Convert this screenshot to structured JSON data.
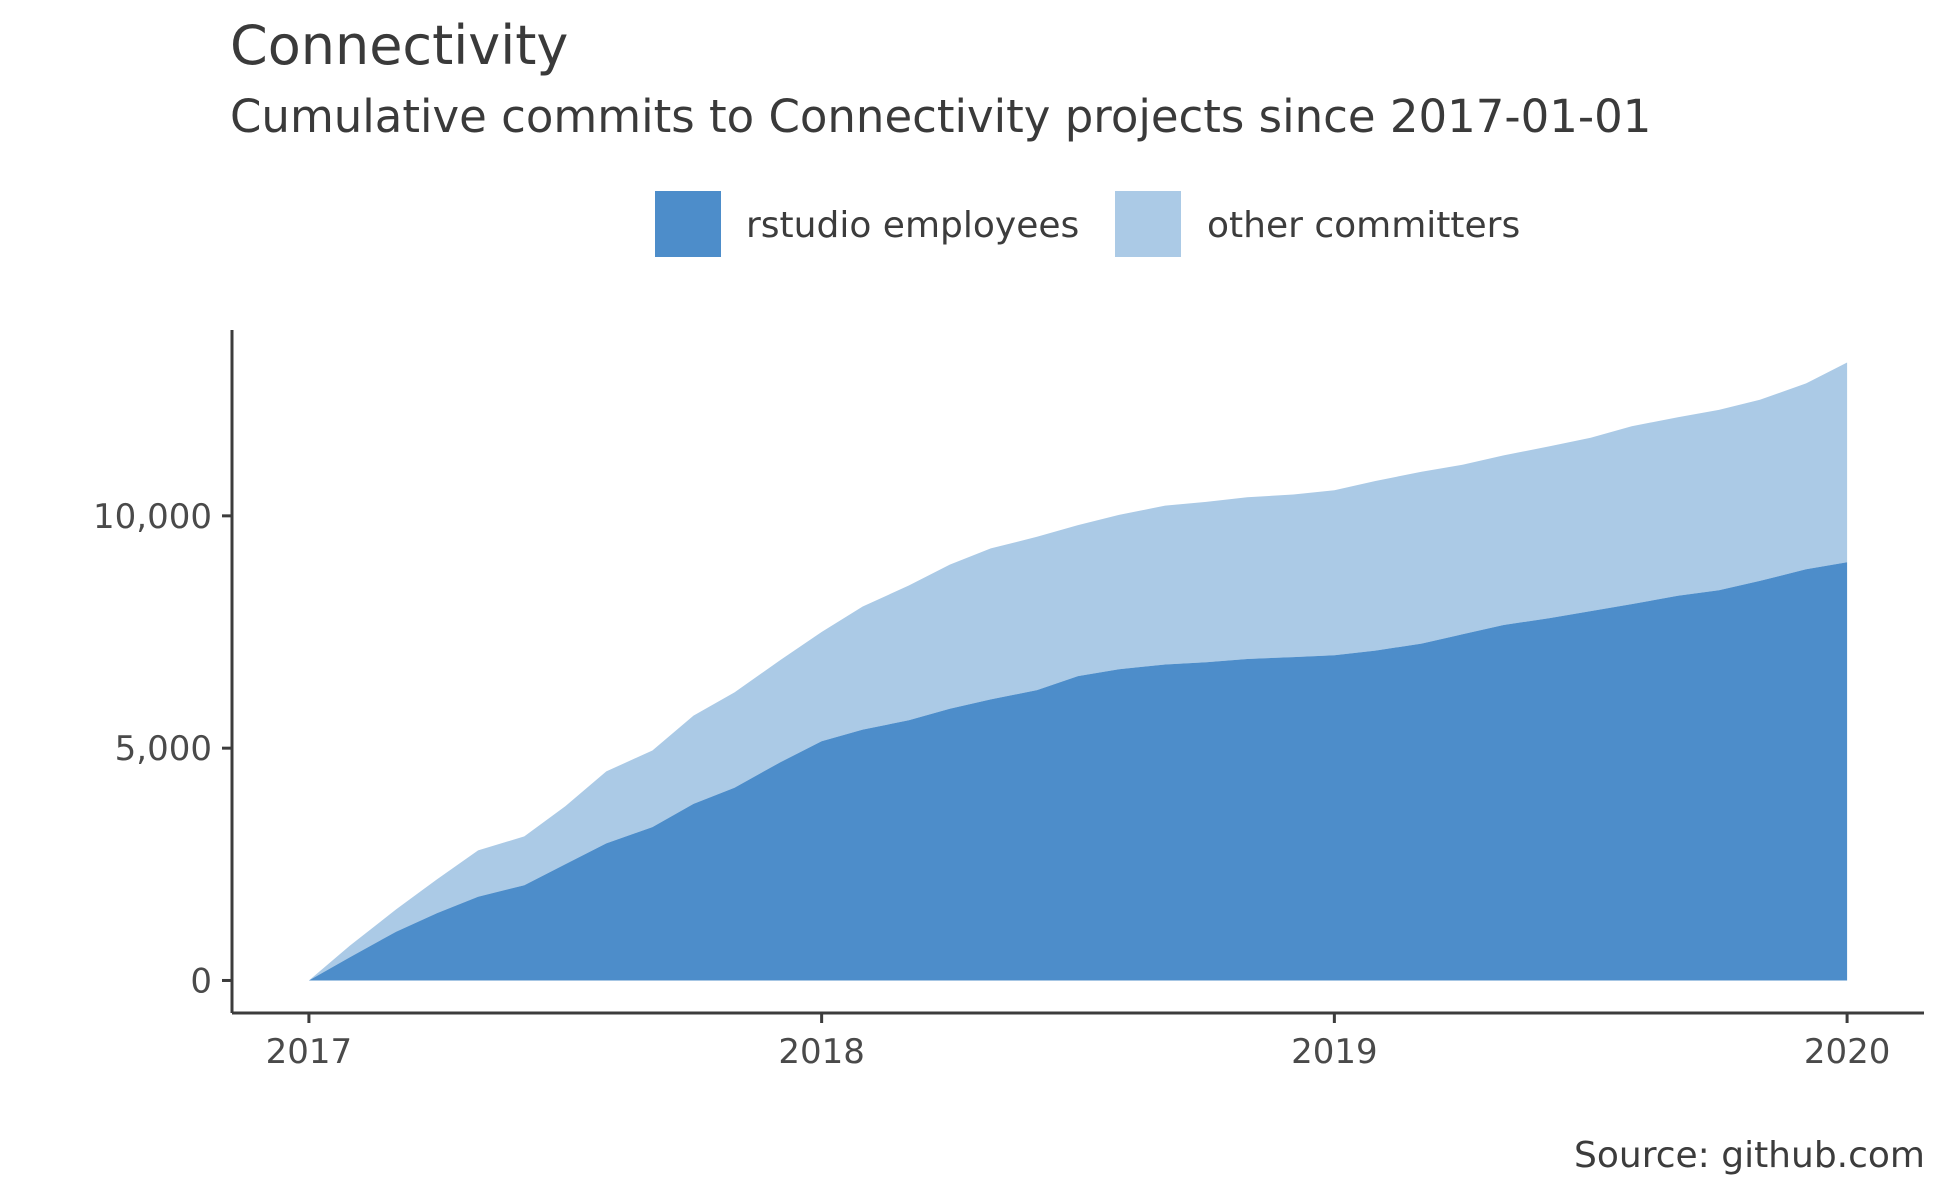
{
  "title": "Connectivity",
  "subtitle": "Cumulative commits to Connectivity projects since 2017-01-01",
  "source": "Source: github.com",
  "colors": {
    "rstudio": "#4d8dca",
    "other": "#abcae6",
    "axis": "#3c3c3c"
  },
  "chart_data": {
    "type": "area",
    "stacked": true,
    "title": "Connectivity",
    "subtitle": "Cumulative commits to Connectivity projects since 2017-01-01",
    "xlabel": "",
    "ylabel": "",
    "xlim": [
      2016.85,
      2020.15
    ],
    "ylim": [
      -700,
      14000
    ],
    "x_ticks": [
      2017,
      2018,
      2019,
      2020
    ],
    "x_tick_labels": [
      "2017",
      "2018",
      "2019",
      "2020"
    ],
    "y_ticks": [
      0,
      5000,
      10000
    ],
    "y_tick_labels": [
      "0",
      "5,000",
      "10,000"
    ],
    "legend_position": "top",
    "x": [
      2017.0,
      2017.08,
      2017.17,
      2017.25,
      2017.33,
      2017.42,
      2017.5,
      2017.58,
      2017.67,
      2017.75,
      2017.83,
      2017.92,
      2018.0,
      2018.08,
      2018.17,
      2018.25,
      2018.33,
      2018.42,
      2018.5,
      2018.58,
      2018.67,
      2018.75,
      2018.83,
      2018.92,
      2019.0,
      2019.08,
      2019.17,
      2019.25,
      2019.33,
      2019.42,
      2019.5,
      2019.58,
      2019.67,
      2019.75,
      2019.83,
      2019.92,
      2020.0
    ],
    "series": [
      {
        "name": "rstudio employees",
        "values": [
          0,
          500,
          1050,
          1450,
          1800,
          2050,
          2500,
          2950,
          3300,
          3800,
          4150,
          4700,
          5150,
          5400,
          5600,
          5850,
          6050,
          6250,
          6550,
          6700,
          6800,
          6850,
          6920,
          6960,
          7000,
          7100,
          7250,
          7450,
          7650,
          7800,
          7950,
          8100,
          8280,
          8400,
          8600,
          8850,
          9000
        ]
      },
      {
        "name": "other committers",
        "values": [
          0,
          250,
          480,
          730,
          1000,
          1050,
          1250,
          1550,
          1650,
          1900,
          2050,
          2200,
          2350,
          2650,
          2900,
          3100,
          3250,
          3300,
          3250,
          3320,
          3420,
          3450,
          3480,
          3500,
          3550,
          3650,
          3700,
          3650,
          3650,
          3700,
          3730,
          3830,
          3840,
          3880,
          3900,
          4000,
          4300
        ]
      }
    ]
  }
}
